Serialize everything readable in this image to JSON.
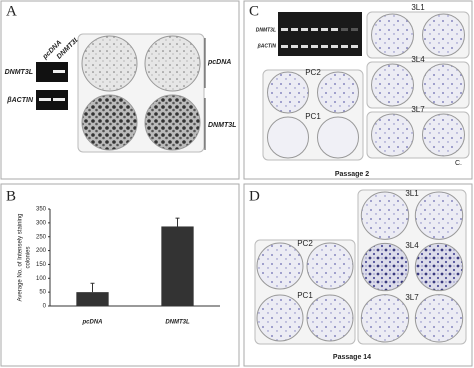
{
  "panels": {
    "a": {
      "letter": "A",
      "lanes": [
        "pcDNA",
        "DNMT3L"
      ],
      "rows": [
        "DNMT3L",
        "βACTIN"
      ],
      "plates": [
        "pcDNA",
        "DNMT3L"
      ]
    },
    "c": {
      "letter": "C",
      "rows": [
        "DNMT3L",
        "βACTIN"
      ],
      "plates": [
        "3L1",
        "PC2",
        "3L4",
        "PC1",
        "3L7"
      ],
      "corner": "C.",
      "caption": "Passage 2"
    },
    "d": {
      "letter": "D",
      "plates": [
        "3L1",
        "PC2",
        "3L4",
        "PC1",
        "3L7"
      ],
      "caption": "Passage 14"
    },
    "b": {
      "letter": "B"
    }
  },
  "chart_data": {
    "type": "bar",
    "ylabel": [
      "Average No. of Intensely staining",
      "colonies"
    ],
    "categories": [
      "pcDNA",
      "DNMT3L"
    ],
    "values": [
      50,
      287
    ],
    "errors": [
      32,
      30
    ],
    "color": "#333333",
    "ylim": [
      0,
      350
    ],
    "yticks": [
      0,
      50,
      100,
      150,
      200,
      250,
      300,
      350
    ]
  }
}
